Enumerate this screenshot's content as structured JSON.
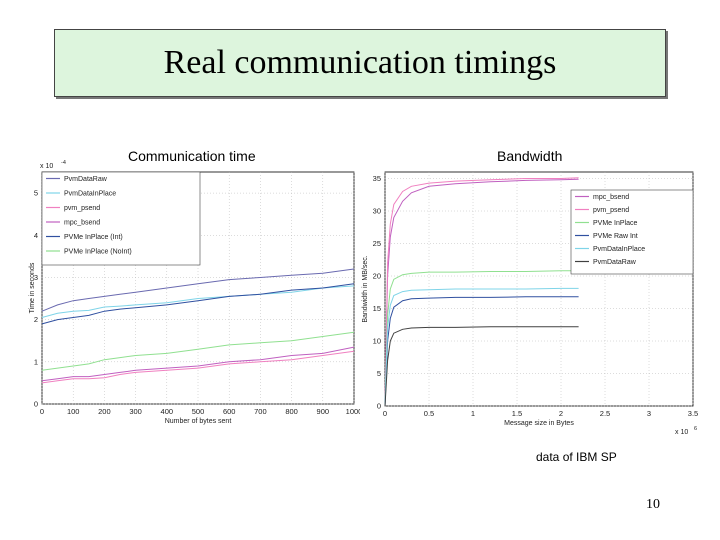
{
  "slide": {
    "title": "Real communication timings",
    "note": "data of IBM SP",
    "page_number": "10"
  },
  "chart_data": [
    {
      "type": "line",
      "title": "Communication time",
      "xlabel": "Number of bytes sent",
      "ylabel": "Time in seconds",
      "y_exponent": "x 10",
      "y_exponent_power": "-4",
      "xlim": [
        0,
        1000
      ],
      "ylim": [
        0,
        5.5
      ],
      "x_ticks": [
        0,
        100,
        200,
        300,
        400,
        500,
        600,
        700,
        800,
        900,
        1000
      ],
      "y_ticks": [
        0,
        1,
        2,
        3,
        4,
        5
      ],
      "grid": true,
      "legend_position": "top-left",
      "series": [
        {
          "name": "PvmDataRaw",
          "color": "#6a6ab0",
          "x": [
            0,
            50,
            100,
            150,
            200,
            250,
            300,
            400,
            500,
            600,
            700,
            800,
            900,
            1000
          ],
          "y": [
            2.2,
            2.35,
            2.45,
            2.5,
            2.55,
            2.6,
            2.65,
            2.75,
            2.85,
            2.95,
            3.0,
            3.05,
            3.1,
            3.2
          ]
        },
        {
          "name": "PvmDataInPlace",
          "color": "#7fd4e8",
          "x": [
            0,
            50,
            100,
            150,
            200,
            250,
            300,
            400,
            500,
            600,
            700,
            800,
            900,
            1000
          ],
          "y": [
            2.05,
            2.15,
            2.2,
            2.22,
            2.3,
            2.32,
            2.35,
            2.4,
            2.5,
            2.55,
            2.6,
            2.65,
            2.75,
            2.8
          ]
        },
        {
          "name": "pvm_psend",
          "color": "#f080c0",
          "x": [
            0,
            50,
            100,
            150,
            200,
            250,
            300,
            400,
            500,
            600,
            700,
            800,
            900,
            1000
          ],
          "y": [
            0.5,
            0.55,
            0.6,
            0.6,
            0.62,
            0.7,
            0.75,
            0.8,
            0.85,
            0.95,
            1.0,
            1.05,
            1.15,
            1.25
          ]
        },
        {
          "name": "mpc_bsend",
          "color": "#c060c0",
          "x": [
            0,
            50,
            100,
            150,
            200,
            250,
            300,
            400,
            500,
            600,
            700,
            800,
            900,
            1000
          ],
          "y": [
            0.55,
            0.6,
            0.65,
            0.65,
            0.7,
            0.75,
            0.8,
            0.85,
            0.9,
            1.0,
            1.05,
            1.15,
            1.2,
            1.35
          ]
        },
        {
          "name": "PVMe InPlace (Int)",
          "color": "#3050a0",
          "x": [
            0,
            50,
            100,
            150,
            200,
            250,
            300,
            400,
            500,
            600,
            700,
            800,
            900,
            1000
          ],
          "y": [
            1.9,
            2.0,
            2.05,
            2.1,
            2.2,
            2.25,
            2.28,
            2.35,
            2.45,
            2.55,
            2.6,
            2.7,
            2.75,
            2.85
          ]
        },
        {
          "name": "PVMe InPlace (NoInt)",
          "color": "#90e090",
          "x": [
            0,
            50,
            100,
            150,
            200,
            250,
            300,
            400,
            500,
            600,
            700,
            800,
            900,
            1000
          ],
          "y": [
            0.8,
            0.85,
            0.9,
            0.95,
            1.05,
            1.1,
            1.15,
            1.2,
            1.3,
            1.4,
            1.45,
            1.5,
            1.6,
            1.7
          ]
        }
      ]
    },
    {
      "type": "line",
      "title": "Bandwidth",
      "xlabel": "Message size in Bytes",
      "ylabel": "Bandwidth in MB/sec.",
      "x_exponent": "x 10",
      "x_exponent_power": "6",
      "xlim": [
        0,
        3.5
      ],
      "ylim": [
        0,
        36
      ],
      "x_ticks": [
        0,
        0.5,
        1,
        1.5,
        2,
        2.5,
        3,
        3.5
      ],
      "y_ticks": [
        0,
        5,
        10,
        15,
        20,
        25,
        30,
        35
      ],
      "grid": true,
      "legend_position": "top-right",
      "series": [
        {
          "name": "mpc_bsend",
          "color": "#c060c0",
          "x": [
            0,
            0.03,
            0.06,
            0.1,
            0.2,
            0.3,
            0.5,
            0.8,
            1.2,
            1.6,
            2.0,
            2.2
          ],
          "y": [
            0,
            20,
            26,
            29,
            31.5,
            32.8,
            33.8,
            34.2,
            34.5,
            34.7,
            34.8,
            34.9
          ]
        },
        {
          "name": "pvm_psend",
          "color": "#f080c0",
          "x": [
            0,
            0.03,
            0.06,
            0.1,
            0.2,
            0.3,
            0.5,
            0.8,
            1.2,
            1.6,
            2.0,
            2.2
          ],
          "y": [
            0,
            22,
            28,
            31,
            33,
            33.8,
            34.3,
            34.6,
            34.8,
            35.0,
            35.0,
            35.1
          ]
        },
        {
          "name": "PVMe InPlace",
          "color": "#90e090",
          "x": [
            0,
            0.03,
            0.06,
            0.1,
            0.2,
            0.3,
            0.5,
            0.8,
            1.2,
            1.6,
            2.0,
            2.2
          ],
          "y": [
            0,
            14,
            18,
            19.5,
            20.2,
            20.4,
            20.6,
            20.6,
            20.7,
            20.7,
            20.8,
            20.8
          ]
        },
        {
          "name": "PVMe Raw Int",
          "color": "#3050a0",
          "x": [
            0,
            0.03,
            0.06,
            0.1,
            0.2,
            0.3,
            0.5,
            0.8,
            1.2,
            1.6,
            2.0,
            2.2
          ],
          "y": [
            0,
            10,
            13.5,
            15.2,
            16.2,
            16.5,
            16.6,
            16.7,
            16.7,
            16.8,
            16.8,
            16.8
          ]
        },
        {
          "name": "PvmDataInPlace",
          "color": "#7fd4e8",
          "x": [
            0,
            0.03,
            0.06,
            0.1,
            0.2,
            0.3,
            0.5,
            0.8,
            1.2,
            1.6,
            2.0,
            2.2
          ],
          "y": [
            0,
            12,
            15.5,
            17,
            17.6,
            17.8,
            17.9,
            18.0,
            18.0,
            18.0,
            18.1,
            18.1
          ]
        },
        {
          "name": "PvmDataRaw",
          "color": "#404040",
          "x": [
            0,
            0.03,
            0.06,
            0.1,
            0.2,
            0.3,
            0.5,
            0.8,
            1.2,
            1.6,
            2.0,
            2.2
          ],
          "y": [
            0,
            7,
            10,
            11.2,
            11.8,
            12.0,
            12.1,
            12.1,
            12.2,
            12.2,
            12.2,
            12.2
          ]
        }
      ]
    }
  ]
}
